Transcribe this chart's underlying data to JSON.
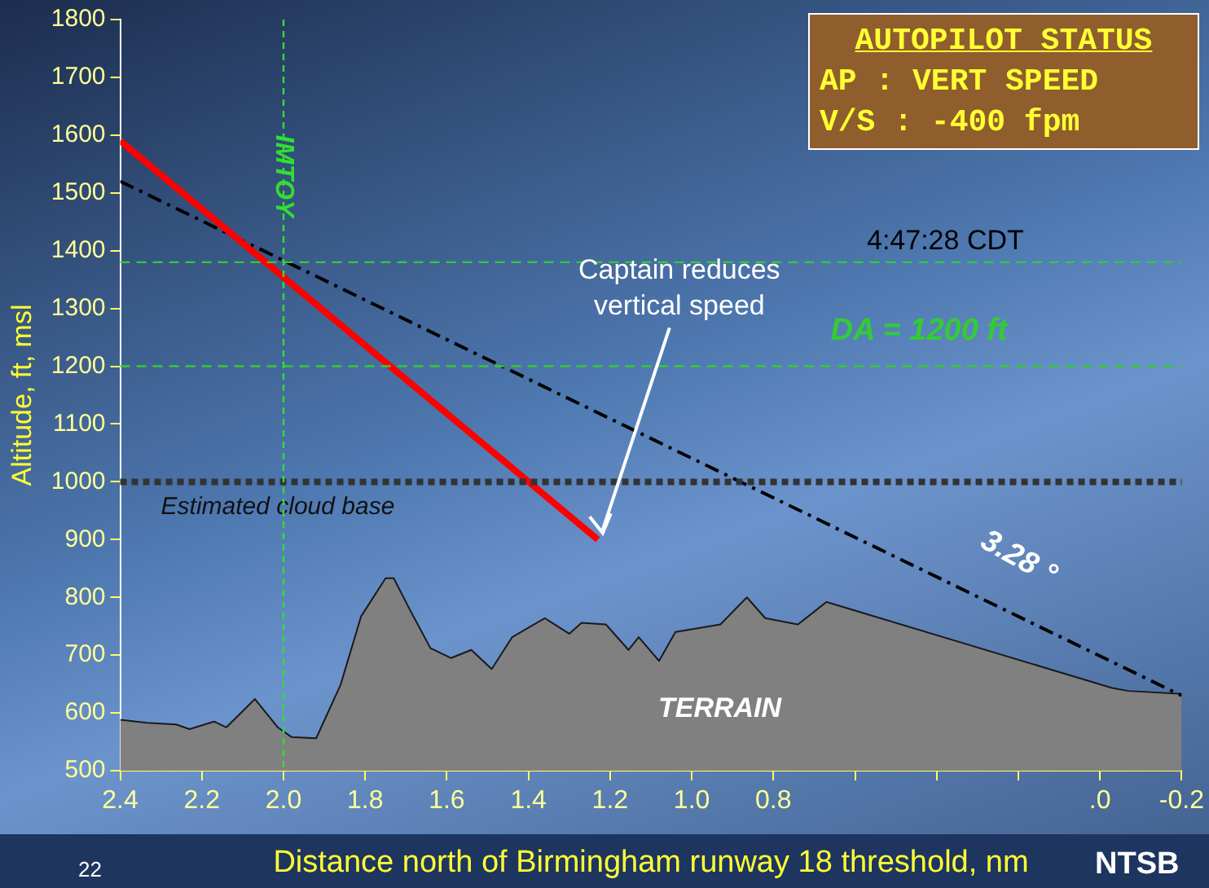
{
  "chart_data": {
    "type": "line",
    "xlabel": "Distance north of Birmingham runway 18 threshold, nm",
    "ylabel": "Altitude, ft, msl",
    "xlim": [
      2.4,
      -0.2
    ],
    "xticks": [
      2.4,
      2.2,
      {
        "value": 2.0,
        "label": "2.0"
      },
      1.8,
      1.6,
      1.4,
      1.2,
      {
        "value": 1.0,
        "label": "1.0"
      },
      0.8,
      {
        "value": 0.6,
        "label": null
      },
      {
        "value": 0.4,
        "label": null
      },
      {
        "value": 0.2,
        "label": null
      },
      {
        "value": 0.0,
        "label": ".0"
      },
      -0.2
    ],
    "ylim": [
      500,
      1800
    ],
    "yticks": [
      500,
      600,
      700,
      800,
      900,
      1000,
      1100,
      1200,
      1300,
      1400,
      1500,
      1600,
      1700,
      1800
    ],
    "grid": false,
    "legend": false,
    "marker": "none",
    "series": [
      {
        "type": "area",
        "color": "#808080",
        "x": [
          2.4,
          2.334,
          2.263,
          2.23,
          2.17,
          2.14,
          2.07,
          2.014,
          1.98,
          1.92,
          1.86,
          1.81,
          1.75,
          1.73,
          1.69,
          1.64,
          1.59,
          1.54,
          1.49,
          1.44,
          1.36,
          1.3,
          1.27,
          1.21,
          1.155,
          1.13,
          1.08,
          1.04,
          0.93,
          0.865,
          0.82,
          0.74,
          0.67,
          -0.03,
          -0.07,
          -0.2
        ],
        "values": [
          588,
          583,
          580,
          572,
          585,
          575,
          624,
          575,
          558,
          556,
          649,
          767,
          833,
          833,
          778,
          712,
          695,
          709,
          676,
          731,
          764,
          737,
          756,
          753,
          709,
          731,
          690,
          740,
          753,
          800,
          764,
          753,
          792,
          643,
          638,
          633
        ]
      },
      {
        "color": "#ff0000",
        "line_style": "solid",
        "x": [
          2.4,
          1.23
        ],
        "values": [
          1590,
          900
        ]
      },
      {
        "color": "#000000",
        "line_style": "dashed",
        "x": [
          2.4,
          -0.2
        ],
        "values": [
          1520,
          630
        ]
      }
    ],
    "ref_lines": [
      {
        "axis": "y",
        "value": 1000,
        "label": "Estimated cloud base",
        "color": "#333333",
        "line_style": "dotted"
      },
      {
        "axis": "y",
        "value": 1380,
        "color": "#33cc33",
        "line_style": "dashed"
      },
      {
        "axis": "y",
        "value": 1200,
        "label": "DA = 1200 ft",
        "color": "#33cc33",
        "line_style": "dashed"
      },
      {
        "axis": "x",
        "value": 2.0,
        "label": "IMTOY",
        "color": "#33dd33",
        "line_style": "dotted"
      }
    ],
    "annotations": [
      {
        "text": "Captain reduces vertical speed",
        "x": 1.23,
        "y": 900
      },
      "4:47:28 CDT",
      "3.28 °",
      "TERRAIN",
      "AUTOPILOT STATUS",
      "AP : VERT SPEED",
      "V/S : -400 fpm",
      "22",
      "NTSB"
    ]
  }
}
